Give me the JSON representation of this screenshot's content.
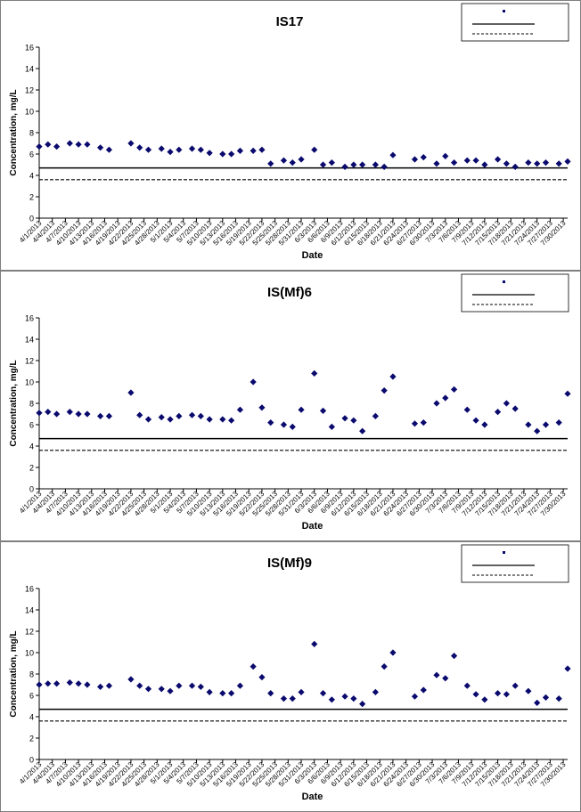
{
  "chart_data": [
    {
      "type": "scatter",
      "title": "IS17",
      "xlabel": "Date",
      "ylabel": "Concentration, mg/L",
      "ylim": [
        0,
        16
      ],
      "ytick_step": 2,
      "xlim_days": [
        "4/1/2013",
        "7/31/2013"
      ],
      "x_tick_labels": [
        "4/1/2013",
        "4/4/2013",
        "4/7/2013",
        "4/10/2013",
        "4/13/2013",
        "4/16/2013",
        "4/19/2013",
        "4/22/2013",
        "4/25/2013",
        "4/28/2013",
        "5/1/2013",
        "5/4/2013",
        "5/7/2013",
        "5/10/2013",
        "5/13/2013",
        "5/16/2013",
        "5/19/2013",
        "5/22/2013",
        "5/25/2013",
        "5/28/2013",
        "5/31/2013",
        "6/3/2013",
        "6/6/2013",
        "6/9/2013",
        "6/12/2013",
        "6/15/2013",
        "6/18/2013",
        "6/21/2013",
        "6/24/2013",
        "6/27/2013",
        "6/30/2013",
        "7/3/2013",
        "7/6/2013",
        "7/9/2013",
        "7/12/2013",
        "7/15/2013",
        "7/18/2013",
        "7/21/2013",
        "7/24/2013",
        "7/27/2013",
        "7/30/2013"
      ],
      "grid": false,
      "legend_position": "top-right",
      "marker_color": "#0a0a6e",
      "series": [
        {
          "points": [
            [
              "4/1/2013",
              6.7
            ],
            [
              "4/3/2013",
              6.9
            ],
            [
              "4/5/2013",
              6.7
            ],
            [
              "4/8/2013",
              7.0
            ],
            [
              "4/10/2013",
              6.9
            ],
            [
              "4/12/2013",
              6.9
            ],
            [
              "4/15/2013",
              6.6
            ],
            [
              "4/17/2013",
              6.4
            ],
            [
              "4/22/2013",
              7.0
            ],
            [
              "4/24/2013",
              6.6
            ],
            [
              "4/26/2013",
              6.4
            ],
            [
              "4/29/2013",
              6.5
            ],
            [
              "5/1/2013",
              6.2
            ],
            [
              "5/3/2013",
              6.4
            ],
            [
              "5/6/2013",
              6.5
            ],
            [
              "5/8/2013",
              6.4
            ],
            [
              "5/10/2013",
              6.1
            ],
            [
              "5/13/2013",
              6.0
            ],
            [
              "5/15/2013",
              6.0
            ],
            [
              "5/17/2013",
              6.3
            ],
            [
              "5/20/2013",
              6.3
            ],
            [
              "5/22/2013",
              6.4
            ],
            [
              "5/24/2013",
              5.1
            ],
            [
              "5/27/2013",
              5.4
            ],
            [
              "5/29/2013",
              5.2
            ],
            [
              "5/31/2013",
              5.5
            ],
            [
              "6/3/2013",
              6.4
            ],
            [
              "6/5/2013",
              5.0
            ],
            [
              "6/7/2013",
              5.2
            ],
            [
              "6/10/2013",
              4.8
            ],
            [
              "6/12/2013",
              5.0
            ],
            [
              "6/14/2013",
              5.0
            ],
            [
              "6/17/2013",
              5.0
            ],
            [
              "6/19/2013",
              4.8
            ],
            [
              "6/21/2013",
              5.9
            ],
            [
              "6/26/2013",
              5.5
            ],
            [
              "6/28/2013",
              5.7
            ],
            [
              "7/1/2013",
              5.1
            ],
            [
              "7/3/2013",
              5.8
            ],
            [
              "7/5/2013",
              5.2
            ],
            [
              "7/8/2013",
              5.4
            ],
            [
              "7/10/2013",
              5.4
            ],
            [
              "7/12/2013",
              5.0
            ],
            [
              "7/15/2013",
              5.5
            ],
            [
              "7/17/2013",
              5.1
            ],
            [
              "7/19/2013",
              4.8
            ],
            [
              "7/22/2013",
              5.2
            ],
            [
              "7/24/2013",
              5.1
            ],
            [
              "7/26/2013",
              5.2
            ],
            [
              "7/29/2013",
              5.1
            ],
            [
              "7/31/2013",
              5.3
            ]
          ]
        }
      ],
      "hlines": [
        {
          "y": 4.7,
          "style": "solid"
        },
        {
          "y": 3.6,
          "style": "dashed"
        }
      ]
    },
    {
      "type": "scatter",
      "title": "IS(Mf)6",
      "xlabel": "Date",
      "ylabel": "Concentration, mg/L",
      "ylim": [
        0,
        16
      ],
      "ytick_step": 2,
      "xlim_days": [
        "4/1/2013",
        "7/31/2013"
      ],
      "x_tick_labels": [
        "4/1/2013",
        "4/4/2013",
        "4/7/2013",
        "4/10/2013",
        "4/13/2013",
        "4/16/2013",
        "4/19/2013",
        "4/22/2013",
        "4/25/2013",
        "4/28/2013",
        "5/1/2013",
        "5/4/2013",
        "5/7/2013",
        "5/10/2013",
        "5/13/2013",
        "5/16/2013",
        "5/19/2013",
        "5/22/2013",
        "5/25/2013",
        "5/28/2013",
        "5/31/2013",
        "6/3/2013",
        "6/6/2013",
        "6/9/2013",
        "6/12/2013",
        "6/15/2013",
        "6/18/2013",
        "6/21/2013",
        "6/24/2013",
        "6/27/2013",
        "6/30/2013",
        "7/3/2013",
        "7/6/2013",
        "7/9/2013",
        "7/12/2013",
        "7/15/2013",
        "7/18/2013",
        "7/21/2013",
        "7/24/2013",
        "7/27/2013",
        "7/30/2013"
      ],
      "grid": false,
      "legend_position": "top-right",
      "marker_color": "#0a0a6e",
      "series": [
        {
          "points": [
            [
              "4/1/2013",
              7.1
            ],
            [
              "4/3/2013",
              7.2
            ],
            [
              "4/5/2013",
              7.0
            ],
            [
              "4/8/2013",
              7.2
            ],
            [
              "4/10/2013",
              7.0
            ],
            [
              "4/12/2013",
              7.0
            ],
            [
              "4/15/2013",
              6.8
            ],
            [
              "4/17/2013",
              6.8
            ],
            [
              "4/22/2013",
              9.0
            ],
            [
              "4/24/2013",
              6.9
            ],
            [
              "4/26/2013",
              6.5
            ],
            [
              "4/29/2013",
              6.7
            ],
            [
              "5/1/2013",
              6.5
            ],
            [
              "5/3/2013",
              6.8
            ],
            [
              "5/6/2013",
              6.9
            ],
            [
              "5/8/2013",
              6.8
            ],
            [
              "5/10/2013",
              6.5
            ],
            [
              "5/13/2013",
              6.5
            ],
            [
              "5/15/2013",
              6.4
            ],
            [
              "5/17/2013",
              7.4
            ],
            [
              "5/20/2013",
              10.0
            ],
            [
              "5/22/2013",
              7.6
            ],
            [
              "5/24/2013",
              6.2
            ],
            [
              "5/27/2013",
              6.0
            ],
            [
              "5/29/2013",
              5.8
            ],
            [
              "5/31/2013",
              7.4
            ],
            [
              "6/3/2013",
              10.8
            ],
            [
              "6/5/2013",
              7.3
            ],
            [
              "6/7/2013",
              5.8
            ],
            [
              "6/10/2013",
              6.6
            ],
            [
              "6/12/2013",
              6.4
            ],
            [
              "6/14/2013",
              5.4
            ],
            [
              "6/17/2013",
              6.8
            ],
            [
              "6/19/2013",
              9.2
            ],
            [
              "6/21/2013",
              10.5
            ],
            [
              "6/26/2013",
              6.1
            ],
            [
              "6/28/2013",
              6.2
            ],
            [
              "7/1/2013",
              8.0
            ],
            [
              "7/3/2013",
              8.5
            ],
            [
              "7/5/2013",
              9.3
            ],
            [
              "7/8/2013",
              7.4
            ],
            [
              "7/10/2013",
              6.4
            ],
            [
              "7/12/2013",
              6.0
            ],
            [
              "7/15/2013",
              7.2
            ],
            [
              "7/17/2013",
              8.0
            ],
            [
              "7/19/2013",
              7.5
            ],
            [
              "7/22/2013",
              6.0
            ],
            [
              "7/24/2013",
              5.4
            ],
            [
              "7/26/2013",
              6.0
            ],
            [
              "7/29/2013",
              6.2
            ],
            [
              "7/31/2013",
              8.9
            ]
          ]
        }
      ],
      "hlines": [
        {
          "y": 4.7,
          "style": "solid"
        },
        {
          "y": 3.6,
          "style": "dashed"
        }
      ]
    },
    {
      "type": "scatter",
      "title": "IS(Mf)9",
      "xlabel": "Date",
      "ylabel": "Concentration, mg/L",
      "ylim": [
        0,
        16
      ],
      "ytick_step": 2,
      "xlim_days": [
        "4/1/2013",
        "7/31/2013"
      ],
      "x_tick_labels": [
        "4/1/2013",
        "4/4/2013",
        "4/7/2013",
        "4/10/2013",
        "4/13/2013",
        "4/16/2013",
        "4/19/2013",
        "4/22/2013",
        "4/25/2013",
        "4/28/2013",
        "5/1/2013",
        "5/4/2013",
        "5/7/2013",
        "5/10/2013",
        "5/13/2013",
        "5/16/2013",
        "5/19/2013",
        "5/22/2013",
        "5/25/2013",
        "5/28/2013",
        "5/31/2013",
        "6/3/2013",
        "6/6/2013",
        "6/9/2013",
        "6/12/2013",
        "6/15/2013",
        "6/18/2013",
        "6/21/2013",
        "6/24/2013",
        "6/27/2013",
        "6/30/2013",
        "7/3/2013",
        "7/6/2013",
        "7/9/2013",
        "7/12/2013",
        "7/15/2013",
        "7/18/2013",
        "7/21/2013",
        "7/24/2013",
        "7/27/2013",
        "7/30/2013"
      ],
      "grid": false,
      "legend_position": "top-right",
      "marker_color": "#0a0a6e",
      "series": [
        {
          "points": [
            [
              "4/1/2013",
              7.0
            ],
            [
              "4/3/2013",
              7.1
            ],
            [
              "4/5/2013",
              7.1
            ],
            [
              "4/8/2013",
              7.2
            ],
            [
              "4/10/2013",
              7.1
            ],
            [
              "4/12/2013",
              7.0
            ],
            [
              "4/15/2013",
              6.8
            ],
            [
              "4/17/2013",
              6.9
            ],
            [
              "4/22/2013",
              7.5
            ],
            [
              "4/24/2013",
              6.9
            ],
            [
              "4/26/2013",
              6.6
            ],
            [
              "4/29/2013",
              6.6
            ],
            [
              "5/1/2013",
              6.4
            ],
            [
              "5/3/2013",
              6.9
            ],
            [
              "5/6/2013",
              6.9
            ],
            [
              "5/8/2013",
              6.8
            ],
            [
              "5/10/2013",
              6.3
            ],
            [
              "5/13/2013",
              6.2
            ],
            [
              "5/15/2013",
              6.2
            ],
            [
              "5/17/2013",
              6.9
            ],
            [
              "5/20/2013",
              8.7
            ],
            [
              "5/22/2013",
              7.7
            ],
            [
              "5/24/2013",
              6.2
            ],
            [
              "5/27/2013",
              5.7
            ],
            [
              "5/29/2013",
              5.7
            ],
            [
              "5/31/2013",
              6.3
            ],
            [
              "6/3/2013",
              10.8
            ],
            [
              "6/5/2013",
              6.2
            ],
            [
              "6/7/2013",
              5.6
            ],
            [
              "6/10/2013",
              5.9
            ],
            [
              "6/12/2013",
              5.7
            ],
            [
              "6/14/2013",
              5.2
            ],
            [
              "6/17/2013",
              6.3
            ],
            [
              "6/19/2013",
              8.7
            ],
            [
              "6/21/2013",
              10.0
            ],
            [
              "6/26/2013",
              5.9
            ],
            [
              "6/28/2013",
              6.5
            ],
            [
              "7/1/2013",
              7.9
            ],
            [
              "7/3/2013",
              7.6
            ],
            [
              "7/5/2013",
              9.7
            ],
            [
              "7/8/2013",
              6.9
            ],
            [
              "7/10/2013",
              6.1
            ],
            [
              "7/12/2013",
              5.6
            ],
            [
              "7/15/2013",
              6.2
            ],
            [
              "7/17/2013",
              6.1
            ],
            [
              "7/19/2013",
              6.9
            ],
            [
              "7/22/2013",
              6.4
            ],
            [
              "7/24/2013",
              5.3
            ],
            [
              "7/26/2013",
              5.8
            ],
            [
              "7/29/2013",
              5.7
            ],
            [
              "7/31/2013",
              8.5
            ]
          ]
        }
      ],
      "hlines": [
        {
          "y": 4.7,
          "style": "solid"
        },
        {
          "y": 3.6,
          "style": "dashed"
        }
      ]
    }
  ]
}
